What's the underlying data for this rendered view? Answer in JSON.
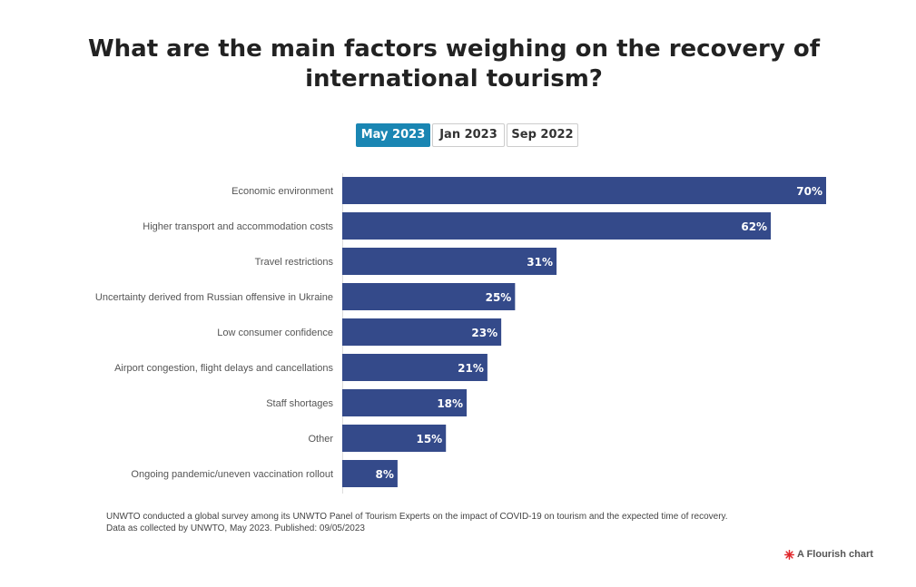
{
  "title": "What are the main factors weighing on the recovery of international tourism?",
  "tabs": [
    {
      "label": "May 2023",
      "active": true
    },
    {
      "label": "Jan 2023",
      "active": false
    },
    {
      "label": "Sep 2022",
      "active": false
    }
  ],
  "chart_data": {
    "type": "bar",
    "orientation": "horizontal",
    "categories": [
      "Economic environment",
      "Higher transport and accommodation costs",
      "Travel restrictions",
      "Uncertainty derived from Russian offensive in Ukraine",
      "Low consumer confidence",
      "Airport congestion, flight delays and cancellations",
      "Staff shortages",
      "Other",
      "Ongoing pandemic/uneven vaccination rollout"
    ],
    "values": [
      70,
      62,
      31,
      25,
      23,
      21,
      18,
      15,
      8
    ],
    "value_suffix": "%",
    "bar_color": "#344a8a",
    "xlim": [
      0,
      70
    ],
    "grid": false,
    "legend": "none"
  },
  "footer": {
    "line1": "UNWTO conducted a global survey among its UNWTO Panel of Tourism Experts on the impact of COVID-19 on tourism and the expected time of recovery.",
    "line2": "Data as collected by UNWTO, May 2023. Published: 09/05/2023"
  },
  "credit": {
    "label": "A Flourish chart",
    "icon": "flourish-logo-icon",
    "icon_color": "#e0262a"
  }
}
